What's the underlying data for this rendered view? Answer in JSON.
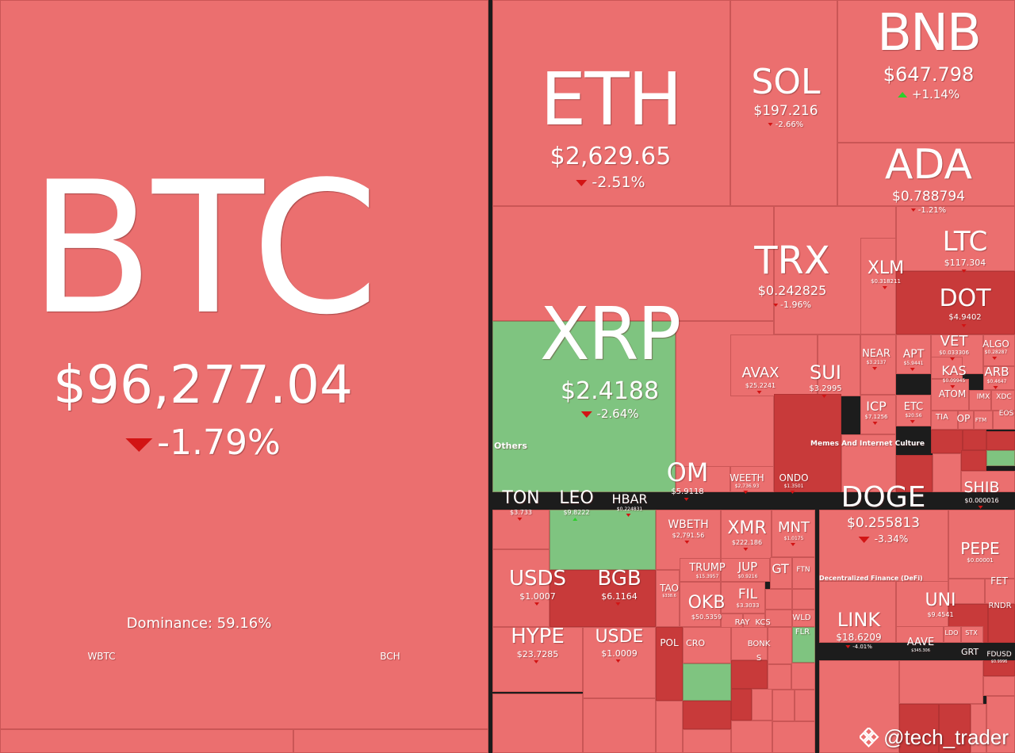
{
  "chart_data": {
    "type": "treemap",
    "title": "",
    "dominance": "Dominance: 59.16%",
    "sectors": [
      "Others",
      "Memes And Internet Culture",
      "Decentralized Finance (DeFi)"
    ],
    "items": [
      {
        "symbol": "BTC",
        "price": "$96,277.04",
        "change": "-1.79%",
        "direction": "down"
      },
      {
        "symbol": "ETH",
        "price": "$2,629.65",
        "change": "-2.51%",
        "direction": "down"
      },
      {
        "symbol": "SOL",
        "price": "$197.216",
        "change": "-2.66%",
        "direction": "down"
      },
      {
        "symbol": "BNB",
        "price": "$647.798",
        "change": "+1.14%",
        "direction": "up"
      },
      {
        "symbol": "ADA",
        "price": "$0.788794",
        "change": "-1.21%",
        "direction": "down"
      },
      {
        "symbol": "XRP",
        "price": "$2.4188",
        "change": "-2.64%",
        "direction": "down"
      },
      {
        "symbol": "TRX",
        "price": "$0.242825",
        "change": "-1.96%",
        "direction": "down"
      },
      {
        "symbol": "XLM",
        "price": "$0.318211",
        "change": "",
        "direction": "down"
      },
      {
        "symbol": "LTC",
        "price": "$117.304",
        "change": "",
        "direction": "down"
      },
      {
        "symbol": "DOT",
        "price": "$4.9402",
        "change": "",
        "direction": "down"
      },
      {
        "symbol": "NEAR",
        "price": "$3.2137",
        "change": "",
        "direction": "down"
      },
      {
        "symbol": "APT",
        "price": "$5.9441",
        "change": "",
        "direction": "down"
      },
      {
        "symbol": "VET",
        "price": "$0.033306",
        "change": "",
        "direction": "down"
      },
      {
        "symbol": "ALGO",
        "price": "$0.28287",
        "change": "",
        "direction": "down"
      },
      {
        "symbol": "KAS",
        "price": "$0.09945",
        "change": "",
        "direction": "down"
      },
      {
        "symbol": "ARB",
        "price": "$0.4647",
        "change": "",
        "direction": "down"
      },
      {
        "symbol": "AVAX",
        "price": "$25.2241",
        "change": "",
        "direction": "down"
      },
      {
        "symbol": "SUI",
        "price": "$3.2995",
        "change": "",
        "direction": "down"
      },
      {
        "symbol": "ICP",
        "price": "$7.1256",
        "change": "",
        "direction": "down"
      },
      {
        "symbol": "ETC",
        "price": "$20.56",
        "change": "",
        "direction": "down"
      },
      {
        "symbol": "ATOM",
        "price": "",
        "change": "",
        "direction": "down"
      },
      {
        "symbol": "IMX",
        "price": "",
        "change": "",
        "direction": "down"
      },
      {
        "symbol": "XDC",
        "price": "",
        "change": "",
        "direction": "down"
      },
      {
        "symbol": "TIA",
        "price": "",
        "change": "",
        "direction": "down"
      },
      {
        "symbol": "OP",
        "price": "",
        "change": "",
        "direction": "down"
      },
      {
        "symbol": "FTM",
        "price": "",
        "change": "",
        "direction": "down"
      },
      {
        "symbol": "EOS",
        "price": "",
        "change": "",
        "direction": "down"
      },
      {
        "symbol": "OM",
        "price": "$5.9118",
        "change": "",
        "direction": "down"
      },
      {
        "symbol": "WEETH",
        "price": "$2,736.93",
        "change": "",
        "direction": "down"
      },
      {
        "symbol": "ONDO",
        "price": "$1.3501",
        "change": "",
        "direction": "down"
      },
      {
        "symbol": "SHIB",
        "price": "$0.000016",
        "change": "",
        "direction": "down"
      },
      {
        "symbol": "TON",
        "price": "$3.733",
        "change": "",
        "direction": "down"
      },
      {
        "symbol": "LEO",
        "price": "$9.8222",
        "change": "",
        "direction": "up"
      },
      {
        "symbol": "HBAR",
        "price": "$0.224831",
        "change": "",
        "direction": "down"
      },
      {
        "symbol": "DOGE",
        "price": "$0.255813",
        "change": "-3.34%",
        "direction": "down"
      },
      {
        "symbol": "WBETH",
        "price": "$2,791.56",
        "change": "",
        "direction": "down"
      },
      {
        "symbol": "XMR",
        "price": "$222.186",
        "change": "",
        "direction": "down"
      },
      {
        "symbol": "MNT",
        "price": "$1.0175",
        "change": "",
        "direction": "down"
      },
      {
        "symbol": "USDS",
        "price": "$1.0007",
        "change": "",
        "direction": "down"
      },
      {
        "symbol": "BGB",
        "price": "$6.1164",
        "change": "",
        "direction": "down"
      },
      {
        "symbol": "TRUMP",
        "price": "$15.3957",
        "change": "",
        "direction": "down"
      },
      {
        "symbol": "JUP",
        "price": "$0.9216",
        "change": "",
        "direction": "down"
      },
      {
        "symbol": "GT",
        "price": "",
        "change": "",
        "direction": "down"
      },
      {
        "symbol": "FTN",
        "price": "",
        "change": "",
        "direction": "down"
      },
      {
        "symbol": "TAO",
        "price": "$338.6",
        "change": "",
        "direction": "down"
      },
      {
        "symbol": "OKB",
        "price": "$50.5359",
        "change": "",
        "direction": "down"
      },
      {
        "symbol": "FIL",
        "price": "$3.3033",
        "change": "",
        "direction": "down"
      },
      {
        "symbol": "PEPE",
        "price": "$0.00001",
        "change": "",
        "direction": "down"
      },
      {
        "symbol": "FET",
        "price": "",
        "change": "",
        "direction": "down"
      },
      {
        "symbol": "RNDR",
        "price": "",
        "change": "",
        "direction": "down"
      },
      {
        "symbol": "UNI",
        "price": "$9.4541",
        "change": "",
        "direction": "down"
      },
      {
        "symbol": "LINK",
        "price": "$18.6209",
        "change": "-4.01%",
        "direction": "down"
      },
      {
        "symbol": "AAVE",
        "price": "$345.306",
        "change": "",
        "direction": "down"
      },
      {
        "symbol": "LDO",
        "price": "",
        "change": "",
        "direction": "down"
      },
      {
        "symbol": "STX",
        "price": "",
        "change": "",
        "direction": "down"
      },
      {
        "symbol": "HYPE",
        "price": "$23.7285",
        "change": "",
        "direction": "down"
      },
      {
        "symbol": "USDE",
        "price": "$1.0009",
        "change": "",
        "direction": "down"
      },
      {
        "symbol": "POL",
        "price": "",
        "change": "",
        "direction": "down"
      },
      {
        "symbol": "CRO",
        "price": "",
        "change": "",
        "direction": "down"
      },
      {
        "symbol": "RAY",
        "price": "",
        "change": "",
        "direction": "down"
      },
      {
        "symbol": "KCS",
        "price": "",
        "change": "",
        "direction": "down"
      },
      {
        "symbol": "WLD",
        "price": "",
        "change": "",
        "direction": "down"
      },
      {
        "symbol": "FLR",
        "price": "",
        "change": "",
        "direction": "up"
      },
      {
        "symbol": "BONK",
        "price": "",
        "change": "",
        "direction": "down"
      },
      {
        "symbol": "S",
        "price": "",
        "change": "",
        "direction": "down"
      },
      {
        "symbol": "GRT",
        "price": "",
        "change": "",
        "direction": "down"
      },
      {
        "symbol": "FDUSD",
        "price": "$0.9996",
        "change": "",
        "direction": "down"
      },
      {
        "symbol": "WBTC",
        "price": "",
        "change": "",
        "direction": "down"
      },
      {
        "symbol": "BCH",
        "price": "",
        "change": "",
        "direction": "down"
      }
    ]
  },
  "watermark": {
    "text": "@tech_trader",
    "icon": "binance-diamond-icon"
  },
  "colors": {
    "down": "#eb6f6f",
    "down_strong": "#c83a3a",
    "up": "#7fc480",
    "background": "#1c1c1c",
    "down_arrow": "#d21414",
    "up_arrow": "#2bd02b"
  }
}
